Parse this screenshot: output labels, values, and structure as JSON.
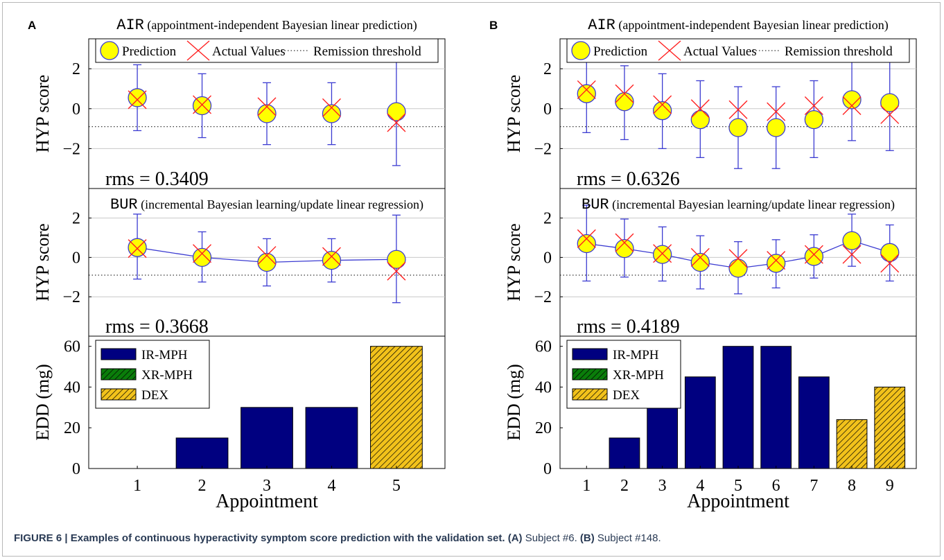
{
  "caption": {
    "figure_label": "FIGURE 6 |",
    "title": "Examples of continuous hyperactivity symptom score prediction with the validation set.",
    "a_label": "(A)",
    "a_text": " Subject #6. ",
    "b_label": "(B)",
    "b_text": " Subject #148."
  },
  "chart_data": [
    {
      "panel": "A",
      "appointments": [
        1,
        2,
        3,
        4,
        5
      ],
      "xlabel": "Appointment",
      "remission_threshold": -0.9,
      "legend_labels": [
        "Prediction",
        "Actual Values",
        "Remission threshold"
      ],
      "air": {
        "type": "scatter",
        "title_code": "AIR",
        "title_text": " (appointment-independent Bayesian linear prediction)",
        "ylabel": "HYP score",
        "ylim": [
          -4,
          3.5
        ],
        "yticks": [
          -2,
          0,
          2
        ],
        "rms": "rms = 0.3409",
        "prediction": [
          0.55,
          0.15,
          -0.25,
          -0.25,
          -0.15
        ],
        "lower": [
          -1.1,
          -1.45,
          -1.8,
          -1.8,
          -2.85
        ],
        "upper": [
          2.2,
          1.75,
          1.3,
          1.3,
          2.55
        ],
        "actual": [
          0.45,
          0.2,
          0.1,
          0.05,
          -0.7
        ]
      },
      "bur": {
        "type": "line",
        "title_code": "BUR",
        "title_text": " (incremental Bayesian learning/update linear regression)",
        "ylabel": "HYP score",
        "ylim": [
          -4,
          3.5
        ],
        "yticks": [
          -2,
          0,
          2
        ],
        "rms": "rms = 0.3668",
        "prediction": [
          0.5,
          0.0,
          -0.25,
          -0.15,
          -0.1
        ],
        "lower": [
          -1.1,
          -1.25,
          -1.45,
          -1.25,
          -2.3
        ],
        "upper": [
          2.2,
          1.3,
          0.95,
          0.95,
          2.15
        ],
        "actual": [
          0.45,
          0.2,
          0.1,
          0.05,
          -0.7
        ]
      },
      "edd": {
        "type": "bar",
        "ylabel": "EDD (mg)",
        "ylim": [
          0,
          65
        ],
        "yticks": [
          0,
          20,
          40,
          60
        ],
        "legend": [
          "IR-MPH",
          "XR-MPH",
          "DEX"
        ],
        "values": [
          0,
          15,
          30,
          30,
          60
        ],
        "drug": [
          "IR-MPH",
          "IR-MPH",
          "IR-MPH",
          "IR-MPH",
          "DEX"
        ]
      }
    },
    {
      "panel": "B",
      "appointments": [
        1,
        2,
        3,
        4,
        5,
        6,
        7,
        8,
        9
      ],
      "xlabel": "Appointment",
      "remission_threshold": -0.9,
      "legend_labels": [
        "Prediction",
        "Actual Values",
        "Remission threshold"
      ],
      "air": {
        "type": "scatter",
        "title_code": "AIR",
        "title_text": " (appointment-independent Bayesian linear prediction)",
        "ylabel": "HYP score",
        "ylim": [
          -4,
          3.5
        ],
        "yticks": [
          -2,
          0,
          2
        ],
        "rms": "rms = 0.6326",
        "prediction": [
          0.75,
          0.35,
          -0.1,
          -0.55,
          -0.95,
          -0.95,
          -0.55,
          0.45,
          0.3
        ],
        "lower": [
          -1.2,
          -1.55,
          -2.0,
          -2.45,
          -3.0,
          -3.0,
          -2.45,
          -1.6,
          -2.1
        ],
        "upper": [
          2.65,
          2.15,
          1.75,
          1.4,
          1.1,
          1.1,
          1.4,
          2.55,
          2.7
        ],
        "actual": [
          0.95,
          0.75,
          0.2,
          0.0,
          -0.05,
          -0.15,
          0.15,
          0.15,
          -0.3
        ]
      },
      "bur": {
        "type": "line",
        "title_code": "BUR",
        "title_text": " (incremental Bayesian learning/update linear regression)",
        "ylabel": "HYP score",
        "ylim": [
          -4,
          3.5
        ],
        "yticks": [
          -2,
          0,
          2
        ],
        "rms": "rms = 0.4189",
        "prediction": [
          0.7,
          0.45,
          0.15,
          -0.25,
          -0.55,
          -0.3,
          0.05,
          0.85,
          0.25
        ],
        "lower": [
          -1.2,
          -1.0,
          -1.2,
          -1.6,
          -1.85,
          -1.55,
          -1.05,
          -0.45,
          -1.2
        ],
        "upper": [
          2.65,
          1.95,
          1.55,
          1.1,
          0.8,
          0.9,
          1.15,
          2.2,
          1.65
        ],
        "actual": [
          0.95,
          0.75,
          0.2,
          0.0,
          -0.05,
          -0.15,
          0.15,
          0.15,
          -0.3
        ]
      },
      "edd": {
        "type": "bar",
        "ylabel": "EDD (mg)",
        "ylim": [
          0,
          65
        ],
        "yticks": [
          0,
          20,
          40,
          60
        ],
        "legend": [
          "IR-MPH",
          "XR-MPH",
          "DEX"
        ],
        "values": [
          0,
          15,
          30,
          45,
          60,
          60,
          45,
          24,
          40
        ],
        "drug": [
          "IR-MPH",
          "IR-MPH",
          "IR-MPH",
          "IR-MPH",
          "IR-MPH",
          "IR-MPH",
          "IR-MPH",
          "DEX",
          "DEX"
        ]
      }
    }
  ],
  "colors": {
    "ir_mph": "#000080",
    "xr_mph": "#0a7d0a",
    "dex": "#f2c21b",
    "prediction_fill": "#ffff00",
    "prediction_stroke": "#3b3bd1",
    "errorbar": "#3b3bd1",
    "actual": "#ff2020",
    "grid": "#c8c8c8"
  }
}
